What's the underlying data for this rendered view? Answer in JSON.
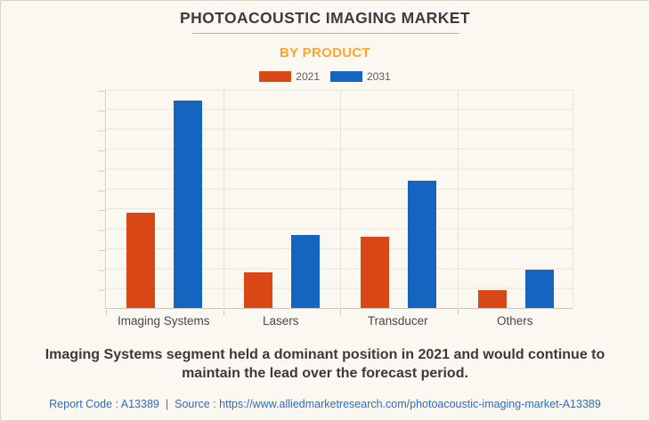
{
  "page": {
    "title": "PHOTOACOUSTIC IMAGING MARKET",
    "subtitle": "BY PRODUCT",
    "statement": "Imaging Systems segment held a dominant position in 2021 and would continue to maintain the lead over the forecast period.",
    "footer": {
      "report_code": "Report Code : A13389",
      "separator": "|",
      "source_label": "Source :",
      "source_url": "https://www.alliedmarketresearch.com/photoacoustic-imaging-market-A13389"
    }
  },
  "colors": {
    "background": "#FAF8F1",
    "title_text": "#3B3B3B",
    "subtitle_text": "#F9A62B",
    "statement_text": "#3A3A3A",
    "footer_link": "#2A6CC4",
    "grid_line": "#E8E5DC",
    "axis_line": "#C9C5BB",
    "series_2021": "#D84715",
    "series_2031": "#1565C0"
  },
  "chart_data": {
    "type": "bar",
    "title": "PHOTOACOUSTIC IMAGING MARKET",
    "subtitle": "BY PRODUCT",
    "categories": [
      "Imaging Systems",
      "Lasers",
      "Transducer",
      "Others"
    ],
    "series": [
      {
        "name": "2021",
        "color": "#D84715",
        "values": [
          43.5,
          16.3,
          32.5,
          8.1
        ]
      },
      {
        "name": "2031",
        "color": "#1565C0",
        "values": [
          94.7,
          33.3,
          58.1,
          17.5
        ]
      }
    ],
    "xlabel": "",
    "ylabel": "",
    "ylim": [
      0,
      100
    ],
    "value_units": "relative height, % of y-axis (no numeric y-axis labels shown)",
    "y_axis_labels_visible": false,
    "grid": true,
    "legend_position": "top-center"
  }
}
